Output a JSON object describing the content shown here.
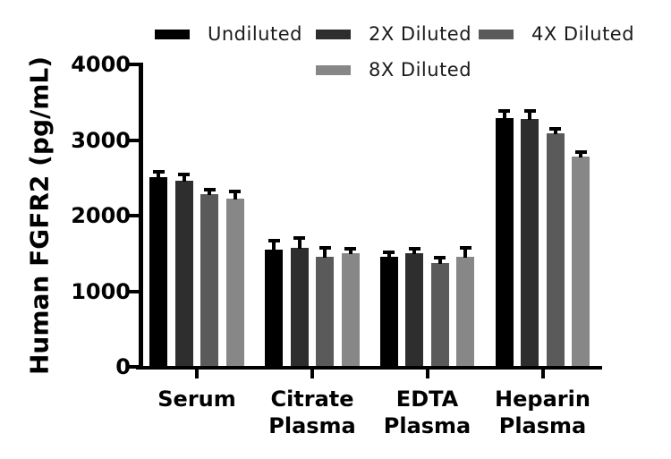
{
  "figure": {
    "background": "#ffffff",
    "axis_color": "#000000",
    "error_bar_color": "#000000"
  },
  "chart_data": {
    "type": "bar",
    "title": "",
    "ylabel": "Human FGFR2 (pg/mL)",
    "xlabel": "",
    "ylim": [
      0,
      4000
    ],
    "yticks": [
      0,
      1000,
      2000,
      3000,
      4000
    ],
    "ytick_labels": [
      "0",
      "1000",
      "2000",
      "3000",
      "4000"
    ],
    "categories": [
      [
        "Serum"
      ],
      [
        "Citrate",
        "Plasma"
      ],
      [
        "EDTA",
        "Plasma"
      ],
      [
        "Heparin",
        "Plasma"
      ]
    ],
    "grid": false,
    "legend_position": "top",
    "error_bars": "upper only, black T caps",
    "series": [
      {
        "name": "Undiluted",
        "color": "#000000",
        "values": [
          2510,
          1550,
          1460,
          3295
        ],
        "errors": [
          45,
          90,
          35,
          70
        ]
      },
      {
        "name": "2X Diluted",
        "color": "#2e2e2e",
        "values": [
          2465,
          1570,
          1500,
          3280
        ],
        "errors": [
          60,
          105,
          35,
          80
        ]
      },
      {
        "name": "4X Diluted",
        "color": "#5a5a5a",
        "values": [
          2280,
          1460,
          1370,
          3090
        ],
        "errors": [
          45,
          90,
          45,
          35
        ]
      },
      {
        "name": "8X Diluted",
        "color": "#878787",
        "values": [
          2230,
          1500,
          1450,
          2785
        ],
        "errors": [
          60,
          35,
          105,
          35
        ]
      }
    ]
  }
}
